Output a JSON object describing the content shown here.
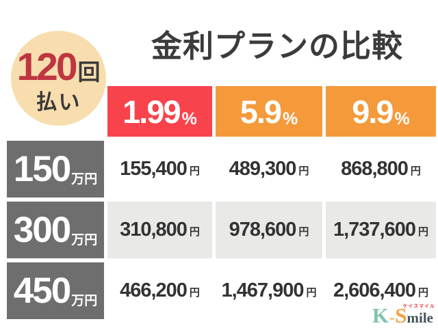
{
  "badge": {
    "count": "120",
    "count_unit": "回",
    "label": "払い"
  },
  "title": "金利プランの比較",
  "table": {
    "rates": [
      {
        "value": "1.99",
        "unit": "%"
      },
      {
        "value": "5.9",
        "unit": "%"
      },
      {
        "value": "9.9",
        "unit": "%"
      }
    ],
    "rows": [
      {
        "amount": "150",
        "amount_unit": "万円",
        "payment_unit": "円",
        "payments": [
          "155,400",
          "489,300",
          "868,800"
        ]
      },
      {
        "amount": "300",
        "amount_unit": "万円",
        "payment_unit": "円",
        "payments": [
          "310,800",
          "978,600",
          "1,737,600"
        ]
      },
      {
        "amount": "450",
        "amount_unit": "万円",
        "payment_unit": "円",
        "payments": [
          "466,200",
          "1,467,900",
          "2,606,400"
        ]
      }
    ]
  },
  "logo": {
    "k": "K",
    "hyphen": "-",
    "s": "S",
    "mile": "mile",
    "kana": "ケイスマイル"
  },
  "colors": {
    "highlight_red": "#f8434d",
    "plan_orange": "#f49a3b",
    "row_header_gray": "#6e6e6e",
    "alt_row_gray": "#e9e9e7",
    "badge_cream": "#f8ddae",
    "badge_count_red": "#bf3540",
    "text_dark": "#3a3a3a",
    "logo_teal": "#84c3ae",
    "logo_orange": "#f0a245",
    "logo_kana_red": "#e0393f"
  },
  "chart_data": {
    "type": "table",
    "title": "金利プランの比較",
    "condition": "120回払い",
    "columns": [
      "1.99%",
      "5.9%",
      "9.9%"
    ],
    "row_labels": [
      "150万円",
      "300万円",
      "450万円"
    ],
    "values_yen": [
      [
        155400,
        489300,
        868800
      ],
      [
        310800,
        978600,
        1737600
      ],
      [
        466200,
        1467900,
        2606400
      ]
    ],
    "highlighted_column": "1.99%"
  }
}
